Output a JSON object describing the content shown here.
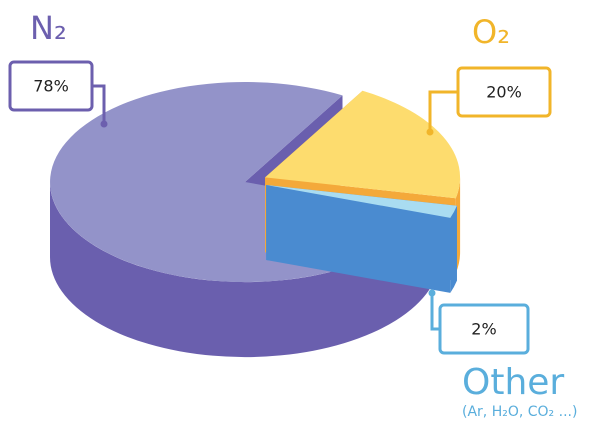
{
  "chart_data": {
    "type": "pie",
    "categories": [
      "N₂",
      "O₂",
      "Other"
    ],
    "values": [
      78,
      20,
      2
    ],
    "value_labels": [
      "78%",
      "20%",
      "2%"
    ],
    "colors": [
      "#9393c9",
      "#fddc6e",
      "#a9dcf1"
    ],
    "side_colors": [
      "#6a5fae",
      "#f4a93a",
      "#4a8bd0"
    ],
    "label_colors": [
      "#6c5fae",
      "#f1b52a",
      "#5aaedc"
    ],
    "annotations": [
      "(Ar, H₂O, CO₂ ...)"
    ]
  }
}
